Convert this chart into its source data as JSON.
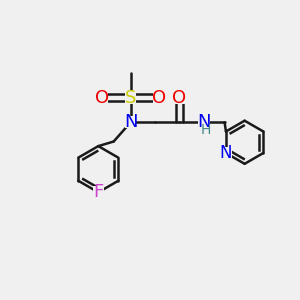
{
  "bg_color": "#f0f0f0",
  "bond_color": "#1a1a1a",
  "colors": {
    "N": "#0000ee",
    "O": "#ee0000",
    "S": "#cccc00",
    "F": "#cc44cc",
    "NH_H": "#448888"
  },
  "bond_lw": 1.8,
  "fs": 12
}
